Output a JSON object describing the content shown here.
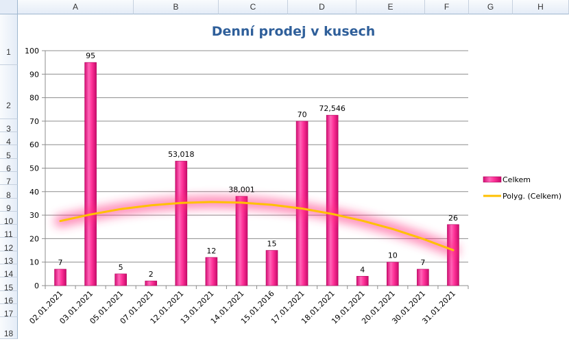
{
  "spreadsheet": {
    "columns": [
      "A",
      "B",
      "C",
      "D",
      "E",
      "F",
      "G",
      "H"
    ],
    "rows": [
      "1",
      "2",
      "3",
      "4",
      "5",
      "6",
      "7",
      "8",
      "9",
      "10",
      "11",
      "12",
      "13",
      "14",
      "15",
      "16",
      "17",
      "18"
    ]
  },
  "chart_data": {
    "type": "bar",
    "title": "Denní prodej v kusech",
    "categories": [
      "02.01.2021",
      "03.01.2021",
      "05.01.2021",
      "07.01.2021",
      "12.01.2021",
      "13.01.2021",
      "14.01.2021",
      "15.01.2016",
      "17.01.2021",
      "18.01.2021",
      "19.01.2021",
      "20.01.2021",
      "30.01.2021",
      "31.01.2021"
    ],
    "series": [
      {
        "name": "Celkem",
        "values": [
          7,
          95,
          5,
          2,
          53.018,
          12,
          38.001,
          15,
          70,
          72.546,
          4,
          10,
          7,
          26
        ],
        "labels": [
          "7",
          "95",
          "5",
          "2",
          "53,018",
          "12",
          "38,001",
          "15",
          "70",
          "72,546",
          "4",
          "10",
          "7",
          "26"
        ],
        "color": "#ff3399"
      }
    ],
    "trendline": {
      "name": "Polyg. (Celkem)",
      "type": "polynomial",
      "color": "#ffc000",
      "values": [
        27.5,
        30.3,
        32.6,
        34.2,
        35.2,
        35.6,
        35.3,
        34.4,
        32.8,
        30.5,
        27.6,
        24.1,
        19.9,
        15.1
      ]
    },
    "ylim": [
      0,
      100
    ],
    "yticks": [
      0,
      10,
      20,
      30,
      40,
      50,
      60,
      70,
      80,
      90,
      100
    ],
    "grid": true,
    "legend": "right"
  }
}
